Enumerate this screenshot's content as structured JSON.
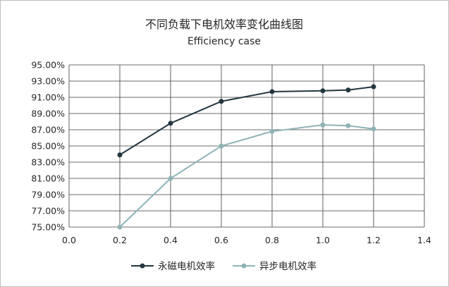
{
  "chart_data": {
    "type": "line",
    "title": "不同负载下电机效率变化曲线图",
    "subtitle": "Efficiency case",
    "xlabel": "",
    "ylabel": "",
    "xlim": [
      0,
      1.4
    ],
    "ylim": [
      75,
      95
    ],
    "x_ticks": [
      "0.0",
      "0.2",
      "0.4",
      "0.6",
      "0.8",
      "1.0",
      "1.2",
      "1.4"
    ],
    "y_ticks": [
      "75.00%",
      "77.00%",
      "79.00%",
      "81.00%",
      "83.00%",
      "85.00%",
      "87.00%",
      "89.00%",
      "91.00%",
      "93.00%",
      "95.00%"
    ],
    "grid": "both",
    "legend_position": "bottom",
    "series": [
      {
        "name": "永磁电机效率",
        "color": "#243640",
        "x": [
          0.2,
          0.4,
          0.6,
          0.8,
          1.0,
          1.1,
          1.2
        ],
        "values": [
          83.9,
          87.8,
          90.5,
          91.7,
          91.8,
          91.9,
          92.3
        ]
      },
      {
        "name": "异步电机效率",
        "color": "#8fb3b6",
        "x": [
          0.2,
          0.4,
          0.6,
          0.8,
          1.0,
          1.1,
          1.2
        ],
        "values": [
          75.0,
          81.0,
          85.0,
          86.8,
          87.6,
          87.5,
          87.1
        ]
      }
    ]
  }
}
